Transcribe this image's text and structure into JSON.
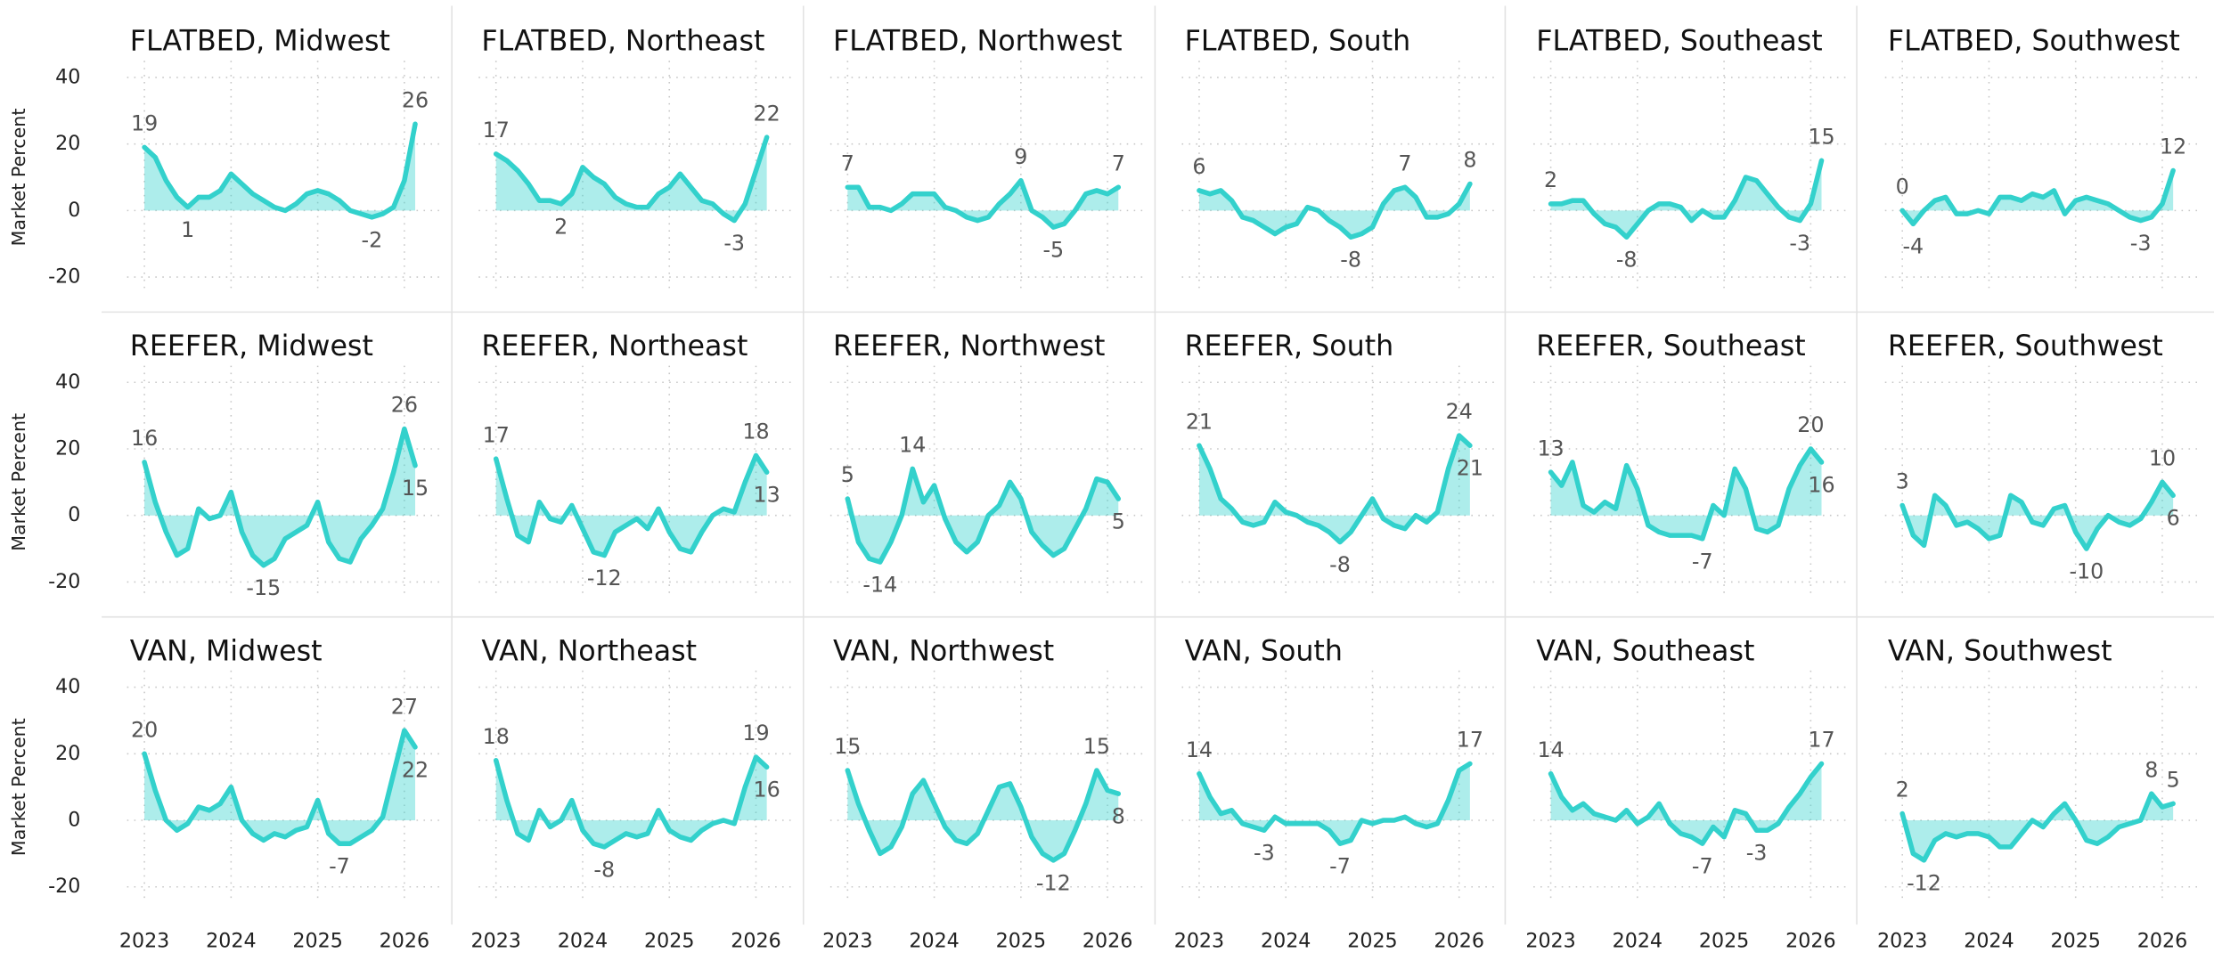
{
  "chart_data": {
    "type": "line",
    "y_label": "Market Percent",
    "color": "#33d1cc",
    "x": [
      2023,
      2023.125,
      2023.25,
      2023.375,
      2023.5,
      2023.625,
      2023.75,
      2023.875,
      2024,
      2024.125,
      2024.25,
      2024.375,
      2024.5,
      2024.625,
      2024.75,
      2024.875,
      2025,
      2025.125,
      2025.25,
      2025.375,
      2025.5,
      2025.625,
      2025.75,
      2025.875,
      2026,
      2026.125
    ],
    "xlim": [
      2022.8,
      2026.45
    ],
    "xticks": [
      2023,
      2024,
      2025,
      2026
    ],
    "ylim": [
      -25,
      45
    ],
    "yticks": [
      -20,
      0,
      20,
      40
    ],
    "grid": true,
    "panels": [
      {
        "title": "FLATBED, Midwest",
        "values": [
          19,
          16,
          9,
          4,
          1,
          4,
          4,
          6,
          11,
          8,
          5,
          3,
          1,
          0,
          2,
          5,
          6,
          5,
          3,
          0,
          -1,
          -2,
          -1,
          1,
          9,
          26
        ],
        "annotations": [
          {
            "x": 2023,
            "value": 19
          },
          {
            "x": 2023.5,
            "value": 1
          },
          {
            "x": 2025.625,
            "value": -2
          },
          {
            "x": 2026.125,
            "value": 26
          }
        ]
      },
      {
        "title": "FLATBED, Northeast",
        "values": [
          17,
          15,
          12,
          8,
          3,
          3,
          2,
          5,
          13,
          10,
          8,
          4,
          2,
          1,
          1,
          5,
          7,
          11,
          7,
          3,
          2,
          -1,
          -3,
          2,
          12,
          22
        ],
        "annotations": [
          {
            "x": 2023,
            "value": 17
          },
          {
            "x": 2023.75,
            "value": 2
          },
          {
            "x": 2025.75,
            "value": -3
          },
          {
            "x": 2026.125,
            "value": 22
          }
        ]
      },
      {
        "title": "FLATBED, Northwest",
        "values": [
          7,
          7,
          1,
          1,
          0,
          2,
          5,
          5,
          5,
          1,
          0,
          -2,
          -3,
          -2,
          2,
          5,
          9,
          0,
          -2,
          -5,
          -4,
          0,
          5,
          6,
          5,
          7
        ],
        "annotations": [
          {
            "x": 2023,
            "value": 7
          },
          {
            "x": 2025,
            "value": 9
          },
          {
            "x": 2025.375,
            "value": -5
          },
          {
            "x": 2026.125,
            "value": 7
          }
        ]
      },
      {
        "title": "FLATBED, South",
        "values": [
          6,
          5,
          6,
          3,
          -2,
          -3,
          -5,
          -7,
          -5,
          -4,
          1,
          0,
          -3,
          -5,
          -8,
          -7,
          -5,
          2,
          6,
          7,
          4,
          -2,
          -2,
          -1,
          2,
          8
        ],
        "annotations": [
          {
            "x": 2023,
            "value": 6
          },
          {
            "x": 2024.75,
            "value": -8
          },
          {
            "x": 2025.375,
            "value": 7
          },
          {
            "x": 2026.125,
            "value": 8
          }
        ]
      },
      {
        "title": "FLATBED, Southeast",
        "values": [
          2,
          2,
          3,
          3,
          -1,
          -4,
          -5,
          -8,
          -4,
          0,
          2,
          2,
          1,
          -3,
          0,
          -2,
          -2,
          3,
          10,
          9,
          5,
          1,
          -2,
          -3,
          2,
          15
        ],
        "annotations": [
          {
            "x": 2023,
            "value": 2
          },
          {
            "x": 2023.875,
            "value": -8
          },
          {
            "x": 2025.875,
            "value": -3
          },
          {
            "x": 2026.125,
            "value": 15
          }
        ]
      },
      {
        "title": "FLATBED, Southwest",
        "values": [
          0,
          -4,
          0,
          3,
          4,
          -1,
          -1,
          0,
          -1,
          4,
          4,
          3,
          5,
          4,
          6,
          -1,
          3,
          4,
          3,
          2,
          0,
          -2,
          -3,
          -2,
          2,
          12
        ],
        "annotations": [
          {
            "x": 2023,
            "value": 0
          },
          {
            "x": 2023.125,
            "value": -4
          },
          {
            "x": 2025.75,
            "value": -3
          },
          {
            "x": 2026.125,
            "value": 12
          }
        ]
      },
      {
        "title": "REEFER, Midwest",
        "values": [
          16,
          4,
          -5,
          -12,
          -10,
          2,
          -1,
          0,
          7,
          -5,
          -12,
          -15,
          -13,
          -7,
          -5,
          -3,
          4,
          -8,
          -13,
          -14,
          -7,
          -3,
          2,
          13,
          26,
          15
        ],
        "annotations": [
          {
            "x": 2023,
            "value": 16
          },
          {
            "x": 2024.375,
            "value": -15
          },
          {
            "x": 2026,
            "value": 26
          },
          {
            "x": 2026.125,
            "value": 15
          }
        ]
      },
      {
        "title": "REEFER, Northeast",
        "values": [
          17,
          5,
          -6,
          -8,
          4,
          -1,
          -2,
          3,
          -4,
          -11,
          -12,
          -5,
          -3,
          -1,
          -4,
          2,
          -5,
          -10,
          -11,
          -5,
          0,
          2,
          1,
          10,
          18,
          13
        ],
        "annotations": [
          {
            "x": 2023,
            "value": 17
          },
          {
            "x": 2024.25,
            "value": -12
          },
          {
            "x": 2026,
            "value": 18
          },
          {
            "x": 2026.125,
            "value": 13
          }
        ]
      },
      {
        "title": "REEFER, Northwest",
        "values": [
          5,
          -8,
          -13,
          -14,
          -8,
          0,
          14,
          4,
          9,
          -1,
          -8,
          -11,
          -8,
          0,
          3,
          10,
          5,
          -5,
          -9,
          -12,
          -10,
          -4,
          2,
          11,
          10,
          5
        ],
        "annotations": [
          {
            "x": 2023,
            "value": 5
          },
          {
            "x": 2023.375,
            "value": -14
          },
          {
            "x": 2023.75,
            "value": 14
          },
          {
            "x": 2026.125,
            "value": 5
          }
        ]
      },
      {
        "title": "REEFER, South",
        "values": [
          21,
          14,
          5,
          2,
          -2,
          -3,
          -2,
          4,
          1,
          0,
          -2,
          -3,
          -5,
          -8,
          -5,
          0,
          5,
          -1,
          -3,
          -4,
          0,
          -2,
          1,
          14,
          24,
          21
        ],
        "annotations": [
          {
            "x": 2023,
            "value": 21
          },
          {
            "x": 2024.625,
            "value": -8
          },
          {
            "x": 2026,
            "value": 24
          },
          {
            "x": 2026.125,
            "value": 21
          }
        ]
      },
      {
        "title": "REEFER, Southeast",
        "values": [
          13,
          9,
          16,
          3,
          1,
          4,
          2,
          15,
          8,
          -3,
          -5,
          -6,
          -6,
          -6,
          -7,
          3,
          0,
          14,
          8,
          -4,
          -5,
          -3,
          8,
          15,
          20,
          16
        ],
        "annotations": [
          {
            "x": 2023,
            "value": 13
          },
          {
            "x": 2024.75,
            "value": -7
          },
          {
            "x": 2026,
            "value": 20
          },
          {
            "x": 2026.125,
            "value": 16
          }
        ]
      },
      {
        "title": "REEFER, Southwest",
        "values": [
          3,
          -6,
          -9,
          6,
          3,
          -3,
          -2,
          -4,
          -7,
          -6,
          6,
          4,
          -2,
          -3,
          2,
          3,
          -5,
          -10,
          -4,
          0,
          -2,
          -3,
          -1,
          4,
          10,
          6
        ],
        "annotations": [
          {
            "x": 2023,
            "value": 3
          },
          {
            "x": 2025.125,
            "value": -10
          },
          {
            "x": 2026,
            "value": 10
          },
          {
            "x": 2026.125,
            "value": 6
          }
        ]
      },
      {
        "title": "VAN, Midwest",
        "values": [
          20,
          9,
          0,
          -3,
          -1,
          4,
          3,
          5,
          10,
          0,
          -4,
          -6,
          -4,
          -5,
          -3,
          -2,
          6,
          -4,
          -7,
          -7,
          -5,
          -3,
          1,
          14,
          27,
          22
        ],
        "annotations": [
          {
            "x": 2023,
            "value": 20
          },
          {
            "x": 2025.25,
            "value": -7
          },
          {
            "x": 2026,
            "value": 27
          },
          {
            "x": 2026.125,
            "value": 22
          }
        ]
      },
      {
        "title": "VAN, Northeast",
        "values": [
          18,
          6,
          -4,
          -6,
          3,
          -2,
          0,
          6,
          -3,
          -7,
          -8,
          -6,
          -4,
          -5,
          -4,
          3,
          -3,
          -5,
          -6,
          -3,
          -1,
          0,
          -1,
          10,
          19,
          16
        ],
        "annotations": [
          {
            "x": 2023,
            "value": 18
          },
          {
            "x": 2024.25,
            "value": -8
          },
          {
            "x": 2026,
            "value": 19
          },
          {
            "x": 2026.125,
            "value": 16
          }
        ]
      },
      {
        "title": "VAN, Northwest",
        "values": [
          15,
          5,
          -3,
          -10,
          -8,
          -2,
          8,
          12,
          5,
          -2,
          -6,
          -7,
          -4,
          3,
          10,
          11,
          4,
          -5,
          -10,
          -12,
          -10,
          -3,
          5,
          15,
          9,
          8
        ],
        "annotations": [
          {
            "x": 2023,
            "value": 15
          },
          {
            "x": 2025.375,
            "value": -12
          },
          {
            "x": 2025.875,
            "value": 15
          },
          {
            "x": 2026.125,
            "value": 8
          }
        ]
      },
      {
        "title": "VAN, South",
        "values": [
          14,
          7,
          2,
          3,
          -1,
          -2,
          -3,
          1,
          -1,
          -1,
          -1,
          -1,
          -3,
          -7,
          -6,
          0,
          -1,
          0,
          0,
          1,
          -1,
          -2,
          -1,
          6,
          15,
          17
        ],
        "annotations": [
          {
            "x": 2023,
            "value": 14
          },
          {
            "x": 2023.75,
            "value": -3
          },
          {
            "x": 2024.625,
            "value": -7
          },
          {
            "x": 2026.125,
            "value": 17
          }
        ]
      },
      {
        "title": "VAN, Southeast",
        "values": [
          14,
          7,
          3,
          5,
          2,
          1,
          0,
          3,
          -1,
          1,
          5,
          -1,
          -4,
          -5,
          -7,
          -2,
          -5,
          3,
          2,
          -3,
          -3,
          -1,
          4,
          8,
          13,
          17
        ],
        "annotations": [
          {
            "x": 2023,
            "value": 14
          },
          {
            "x": 2024.75,
            "value": -7
          },
          {
            "x": 2025.375,
            "value": -3
          },
          {
            "x": 2026.125,
            "value": 17
          }
        ]
      },
      {
        "title": "VAN, Southwest",
        "values": [
          2,
          -10,
          -12,
          -6,
          -4,
          -5,
          -4,
          -4,
          -5,
          -8,
          -8,
          -4,
          0,
          -2,
          2,
          5,
          0,
          -6,
          -7,
          -5,
          -2,
          -1,
          0,
          8,
          4,
          5
        ],
        "annotations": [
          {
            "x": 2023,
            "value": 2
          },
          {
            "x": 2023.25,
            "value": -12
          },
          {
            "x": 2025.875,
            "value": 8
          },
          {
            "x": 2026.125,
            "value": 5
          }
        ]
      }
    ]
  }
}
